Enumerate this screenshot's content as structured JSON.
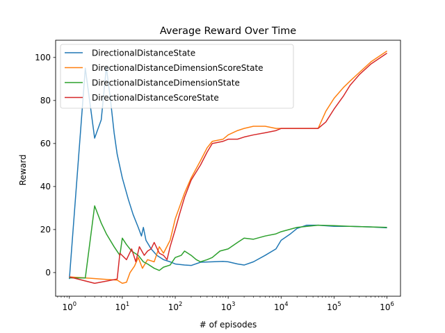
{
  "chart_data": {
    "type": "line",
    "title": "Average Reward Over Time",
    "xlabel": "# of episodes",
    "ylabel": "Reward",
    "xscale": "log",
    "xlim": [
      0.55,
      1800000
    ],
    "ylim": [
      -11,
      108
    ],
    "xticks": [
      {
        "value": 1,
        "base": "10",
        "exp": "0"
      },
      {
        "value": 10,
        "base": "10",
        "exp": "1"
      },
      {
        "value": 100,
        "base": "10",
        "exp": "2"
      },
      {
        "value": 1000,
        "base": "10",
        "exp": "3"
      },
      {
        "value": 10000,
        "base": "10",
        "exp": "4"
      },
      {
        "value": 100000,
        "base": "10",
        "exp": "5"
      },
      {
        "value": 1000000,
        "base": "10",
        "exp": "6"
      }
    ],
    "yticks": [
      {
        "value": 0,
        "label": "0"
      },
      {
        "value": 20,
        "label": "20"
      },
      {
        "value": 40,
        "label": "40"
      },
      {
        "value": 60,
        "label": "60"
      },
      {
        "value": 80,
        "label": "80"
      },
      {
        "value": 100,
        "label": "100"
      }
    ],
    "grid": false,
    "legend_position": "top-left",
    "series": [
      {
        "name": "DirectionalDistanceState",
        "color": "#1f77b4",
        "points": [
          [
            1,
            -3
          ],
          [
            2,
            95
          ],
          [
            3,
            62.5
          ],
          [
            4,
            71
          ],
          [
            5,
            95.5
          ],
          [
            6,
            80
          ],
          [
            7,
            65
          ],
          [
            8,
            55
          ],
          [
            10,
            44
          ],
          [
            13,
            34
          ],
          [
            16,
            27
          ],
          [
            20,
            21
          ],
          [
            23,
            17
          ],
          [
            25,
            21
          ],
          [
            28,
            15
          ],
          [
            35,
            11
          ],
          [
            45,
            8
          ],
          [
            60,
            6
          ],
          [
            80,
            5
          ],
          [
            100,
            4
          ],
          [
            150,
            3.5
          ],
          [
            200,
            3.3
          ],
          [
            300,
            4.8
          ],
          [
            500,
            5
          ],
          [
            800,
            5.2
          ],
          [
            1000,
            5
          ],
          [
            1500,
            4
          ],
          [
            2000,
            3.5
          ],
          [
            3000,
            5
          ],
          [
            5000,
            8
          ],
          [
            8000,
            11
          ],
          [
            10000,
            15
          ],
          [
            15000,
            18
          ],
          [
            20000,
            20.5
          ],
          [
            30000,
            22
          ],
          [
            50000,
            22
          ],
          [
            100000,
            21.5
          ],
          [
            200000,
            21.5
          ],
          [
            500000,
            21.2
          ],
          [
            1000000,
            20.8
          ]
        ]
      },
      {
        "name": "DirectionalDistanceDimensionScoreState",
        "color": "#ff7f0e",
        "points": [
          [
            1,
            -2
          ],
          [
            4,
            -3
          ],
          [
            8,
            -3.5
          ],
          [
            10,
            -5
          ],
          [
            12,
            -4.5
          ],
          [
            14,
            0
          ],
          [
            17,
            3
          ],
          [
            20,
            7
          ],
          [
            24,
            2
          ],
          [
            30,
            6
          ],
          [
            40,
            5
          ],
          [
            50,
            12
          ],
          [
            60,
            9
          ],
          [
            80,
            15
          ],
          [
            100,
            25
          ],
          [
            150,
            37
          ],
          [
            200,
            44
          ],
          [
            300,
            52
          ],
          [
            400,
            58
          ],
          [
            500,
            61
          ],
          [
            800,
            62
          ],
          [
            1000,
            64
          ],
          [
            1500,
            66
          ],
          [
            2000,
            67
          ],
          [
            3000,
            68
          ],
          [
            5000,
            68
          ],
          [
            8000,
            67
          ],
          [
            10000,
            67
          ],
          [
            20000,
            67
          ],
          [
            40000,
            67
          ],
          [
            50000,
            67
          ],
          [
            70000,
            75
          ],
          [
            100000,
            81
          ],
          [
            150000,
            86
          ],
          [
            200000,
            89
          ],
          [
            300000,
            93
          ],
          [
            500000,
            98
          ],
          [
            1000000,
            103
          ]
        ]
      },
      {
        "name": "DirectionalDistanceDimensionState",
        "color": "#2ca02c",
        "points": [
          [
            1,
            -2.5
          ],
          [
            2,
            -2.5
          ],
          [
            3,
            31
          ],
          [
            4,
            23
          ],
          [
            5,
            18
          ],
          [
            7,
            12
          ],
          [
            9,
            8
          ],
          [
            10,
            16
          ],
          [
            12,
            13
          ],
          [
            15,
            10
          ],
          [
            20,
            8
          ],
          [
            25,
            5
          ],
          [
            30,
            4
          ],
          [
            40,
            2
          ],
          [
            50,
            1
          ],
          [
            60,
            2.5
          ],
          [
            80,
            3.5
          ],
          [
            100,
            7
          ],
          [
            130,
            8
          ],
          [
            150,
            10
          ],
          [
            200,
            8
          ],
          [
            250,
            6
          ],
          [
            300,
            5
          ],
          [
            400,
            6
          ],
          [
            500,
            7
          ],
          [
            700,
            10
          ],
          [
            1000,
            11
          ],
          [
            1500,
            14
          ],
          [
            2000,
            16
          ],
          [
            3000,
            15.5
          ],
          [
            5000,
            17
          ],
          [
            8000,
            18
          ],
          [
            10000,
            19
          ],
          [
            20000,
            21
          ],
          [
            50000,
            22
          ],
          [
            100000,
            21.8
          ],
          [
            200000,
            21.5
          ],
          [
            500000,
            21.2
          ],
          [
            1000000,
            21
          ]
        ]
      },
      {
        "name": "DirectionalDistanceScoreState",
        "color": "#d62728",
        "points": [
          [
            1,
            -2
          ],
          [
            3,
            -5
          ],
          [
            5,
            -4
          ],
          [
            8,
            -3
          ],
          [
            9,
            9
          ],
          [
            12,
            6
          ],
          [
            15,
            11
          ],
          [
            18,
            5
          ],
          [
            21,
            12
          ],
          [
            26,
            8
          ],
          [
            30,
            10
          ],
          [
            35,
            11
          ],
          [
            40,
            14
          ],
          [
            50,
            9
          ],
          [
            60,
            8
          ],
          [
            70,
            6
          ],
          [
            80,
            12
          ],
          [
            100,
            20
          ],
          [
            120,
            27
          ],
          [
            150,
            35
          ],
          [
            200,
            43
          ],
          [
            300,
            50
          ],
          [
            400,
            56
          ],
          [
            500,
            60
          ],
          [
            800,
            61
          ],
          [
            1000,
            62
          ],
          [
            1500,
            62
          ],
          [
            2000,
            63
          ],
          [
            3000,
            64
          ],
          [
            5000,
            65
          ],
          [
            8000,
            66
          ],
          [
            10000,
            67
          ],
          [
            20000,
            67
          ],
          [
            50000,
            67
          ],
          [
            70000,
            70
          ],
          [
            100000,
            76
          ],
          [
            150000,
            82
          ],
          [
            200000,
            87
          ],
          [
            300000,
            92
          ],
          [
            500000,
            97
          ],
          [
            1000000,
            102
          ]
        ]
      }
    ]
  }
}
